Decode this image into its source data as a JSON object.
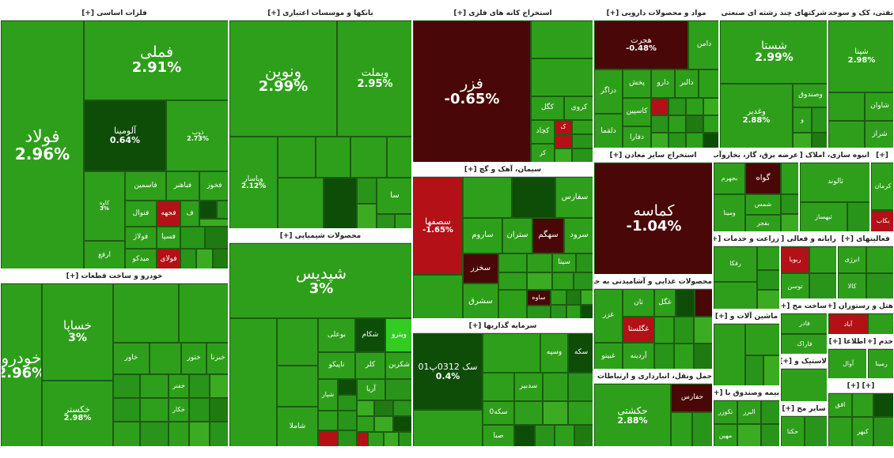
{
  "colors": {
    "strong_green": "#2e9f1a",
    "dark_green": "#0d4d08",
    "light_green": "#33cc22",
    "red": "#b31117",
    "dark_red": "#4a0707"
  },
  "sectors": [
    {
      "name": "فلزات اساسی [+]",
      "tiles": [
        {
          "s": "فولاد",
          "p": "2.96%"
        },
        {
          "s": "فملی",
          "p": "2.91%"
        },
        {
          "s": "آلومینا",
          "p": "0.64%"
        },
        {
          "s": "ذوب",
          "p": "2.73%"
        },
        {
          "s": "کاوه",
          "p": "3%"
        },
        {
          "s": "فاسمین",
          "p": ""
        },
        {
          "s": "فباهنر",
          "p": ""
        },
        {
          "s": "فخوز",
          "p": ""
        },
        {
          "s": "فنوال",
          "p": ""
        },
        {
          "s": "فجهه",
          "p": ""
        },
        {
          "s": "ف",
          "p": ""
        },
        {
          "s": "فولاژ",
          "p": ""
        },
        {
          "s": "فسپا",
          "p": ""
        },
        {
          "s": "ارفع",
          "p": ""
        },
        {
          "s": "میدکو",
          "p": ""
        },
        {
          "s": "فولای",
          "p": ""
        }
      ]
    },
    {
      "name": "بانکها و موسسات اعتباری [+]",
      "tiles": [
        {
          "s": "ونوین",
          "p": "2.99%"
        },
        {
          "s": "وبملت",
          "p": "2.95%"
        },
        {
          "s": "وپاسار",
          "p": "2.12%"
        },
        {
          "s": "سا",
          "p": ""
        }
      ]
    },
    {
      "name": "استخراج کانه های فلزی [+]",
      "tiles": [
        {
          "s": "فزر",
          "p": "-0.65%"
        },
        {
          "s": "کگل",
          "p": ""
        },
        {
          "s": "کروی",
          "p": ""
        },
        {
          "s": "کچاد",
          "p": ""
        },
        {
          "s": "ک",
          "p": ""
        },
        {
          "s": "کر",
          "p": ""
        }
      ]
    },
    {
      "name": "مواد و محصولات دارویی [+]",
      "tiles": [
        {
          "s": "هجرت",
          "p": "-0.48%"
        },
        {
          "s": "دامن",
          "p": ""
        },
        {
          "s": "دزاگر",
          "p": ""
        },
        {
          "s": "پخش",
          "p": ""
        },
        {
          "s": "دارو",
          "p": ""
        },
        {
          "s": "دالبر",
          "p": ""
        },
        {
          "s": "کاسپین",
          "p": ""
        },
        {
          "s": "دلقما",
          "p": ""
        },
        {
          "s": "دفارا",
          "p": ""
        }
      ]
    },
    {
      "name": "شرکتهای چند رشته ای صنعتی [+]",
      "tiles": [
        {
          "s": "شستا",
          "p": "2.99%"
        },
        {
          "s": "وصندوق",
          "p": ""
        },
        {
          "s": "وغدیر",
          "p": "2.88%"
        },
        {
          "s": "و",
          "p": ""
        }
      ]
    },
    {
      "name": "نفتی، کک و سوخت [+]",
      "tiles": [
        {
          "s": "شپنا",
          "p": "2.98%"
        },
        {
          "s": "شاوان",
          "p": ""
        },
        {
          "s": "شراز",
          "p": ""
        }
      ]
    },
    {
      "name": "خودرو و ساخت قطعات [+]",
      "tiles": [
        {
          "s": "خساپا",
          "p": "3%"
        },
        {
          "s": "خودرو",
          "p": "2.96%"
        },
        {
          "s": "خکستر",
          "p": "2.98%"
        },
        {
          "s": "خاور",
          "p": ""
        },
        {
          "s": "ختور",
          "p": ""
        },
        {
          "s": "خبرنا",
          "p": ""
        },
        {
          "s": "خفنر",
          "p": ""
        },
        {
          "s": "خکار",
          "p": ""
        }
      ]
    },
    {
      "name": "محصولات شیمیایی [+]",
      "tiles": [
        {
          "s": "شپدیس",
          "p": "3%"
        },
        {
          "s": "شاملا",
          "p": ""
        },
        {
          "s": "بوعلی",
          "p": ""
        },
        {
          "s": "شکام",
          "p": ""
        },
        {
          "s": "ویترو",
          "p": ""
        },
        {
          "s": "تاپیکو",
          "p": ""
        },
        {
          "s": "کلر",
          "p": ""
        },
        {
          "s": "شکربن",
          "p": ""
        },
        {
          "s": "آریا",
          "p": ""
        },
        {
          "s": "شپار",
          "p": ""
        }
      ]
    },
    {
      "name": "سیمان، آهک و گچ [+]",
      "tiles": [
        {
          "s": "سصفها",
          "p": "-1.65%"
        },
        {
          "s": "سفارس",
          "p": ""
        },
        {
          "s": "ساروم",
          "p": ""
        },
        {
          "s": "ستران",
          "p": ""
        },
        {
          "s": "سهگم",
          "p": ""
        },
        {
          "s": "سرود",
          "p": ""
        },
        {
          "s": "سخزر",
          "p": ""
        },
        {
          "s": "سیتا",
          "p": ""
        },
        {
          "s": "سشرق",
          "p": ""
        },
        {
          "s": "ساوه",
          "p": ""
        }
      ]
    },
    {
      "name": "استخراج سایر معادن [+]",
      "tiles": [
        {
          "s": "کماسه",
          "p": "-1.04%"
        }
      ]
    },
    {
      "name": "سرمایه گذاریها [+]",
      "tiles": [
        {
          "s": "سک 0312پ01",
          "p": "0.4%"
        },
        {
          "s": "وسپه",
          "p": ""
        },
        {
          "s": "سکه",
          "p": ""
        },
        {
          "s": "سدبیر",
          "p": ""
        },
        {
          "s": "سکه0",
          "p": ""
        },
        {
          "s": "صبا",
          "p": ""
        }
      ]
    },
    {
      "name": "محصولات غذایی و آشامیدنی به جز [+]",
      "tiles": [
        {
          "s": "غگل",
          "p": ""
        },
        {
          "s": "تان",
          "p": ""
        },
        {
          "s": "غزر",
          "p": ""
        },
        {
          "s": "غگلستا",
          "p": ""
        },
        {
          "s": "غبینو",
          "p": ""
        },
        {
          "s": "آردینه",
          "p": ""
        }
      ]
    },
    {
      "name": "حمل ونقل، انبارداری و ارتباطات [+]",
      "tiles": [
        {
          "s": "حکشتی",
          "p": "2.88%"
        },
        {
          "s": "حفارس",
          "p": ""
        }
      ]
    }
  ],
  "small_sectors": [
    "عرضه برق، گاز، بخاروآب [+]",
    "انبوه سازی، املاک [+]",
    "زراعت و خدمات [+]",
    "رایانه و فعالی [+]",
    "فعالیتهای [+]",
    "ساخت مح [+]",
    "هتل و رستوران [+]",
    "ماشین آلات و [+]",
    "اطلاعا [+]",
    "خدم [+]",
    "لاستیک و [+]",
    "بیمه وصندوق با [+]",
    "سایر مح [+]"
  ],
  "small_tiles": [
    "بجهرم",
    "گواه",
    "شمس",
    "ومینا",
    "بفجر",
    "ثالوند",
    "ثبهساز",
    "کرمان",
    "بکاب",
    "رفکا",
    "ربوبا",
    "توسن",
    "انرژی",
    "کالا",
    "فاراک",
    "فادر",
    "آباد",
    "آوال",
    "رمینا",
    "تکوزر",
    "البرز",
    "مهین",
    "حکتا",
    "اقق",
    "کبهر"
  ]
}
